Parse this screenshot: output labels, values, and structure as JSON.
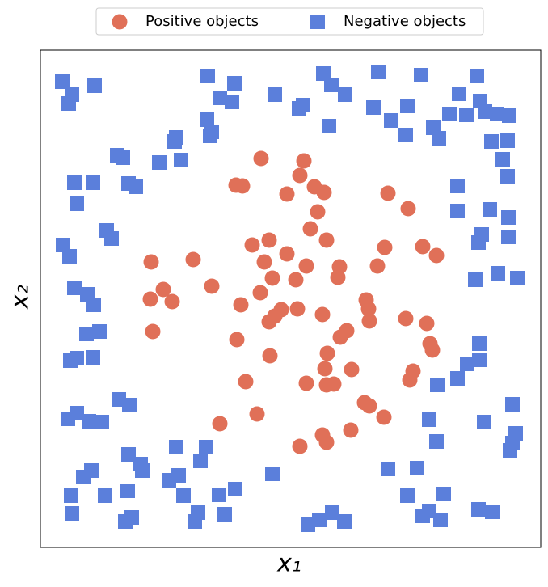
{
  "chart_data": {
    "type": "scatter",
    "xlabel": "x₁",
    "ylabel": "x₂",
    "xlim": [
      0,
      619
    ],
    "ylim": [
      0,
      615
    ],
    "legend": "upper center",
    "series": [
      {
        "name": "Positive objects",
        "color": "#e07058",
        "marker": "circle",
        "x": [
          273,
          326,
          321,
          242,
          250,
          339,
          305,
          351,
          430,
          455,
          343,
          334,
          354,
          283,
          262,
          426,
          473,
          305,
          490,
          137,
          189,
          277,
          370,
          417,
          329,
          368,
          287,
          316,
          212,
          152,
          272,
          403,
          136,
          163,
          248,
          406,
          298,
          318,
          290,
          349,
          283,
          407,
          452,
          478,
          139,
          379,
          371,
          243,
          482,
          485,
          355,
          284,
          385,
          352,
          461,
          254,
          329,
          354,
          363,
          457,
          401,
          407,
          268,
          425,
          222,
          384,
          349,
          354,
          321
        ],
        "y": [
          481,
          478,
          460,
          448,
          447,
          446,
          437,
          439,
          438,
          419,
          415,
          394,
          380,
          380,
          374,
          371,
          372,
          363,
          361,
          353,
          356,
          353,
          347,
          348,
          348,
          334,
          333,
          331,
          323,
          319,
          315,
          306,
          307,
          304,
          300,
          295,
          294,
          295,
          286,
          288,
          279,
          280,
          283,
          277,
          267,
          268,
          260,
          257,
          252,
          244,
          240,
          237,
          220,
          221,
          218,
          205,
          203,
          201,
          202,
          207,
          179,
          175,
          165,
          161,
          153,
          145,
          139,
          130,
          125
        ]
      },
      {
        "name": "Negative objects",
        "color": "#5b7fdb",
        "marker": "square",
        "x": [
          27,
          39,
          35,
          67,
          207,
          240,
          222,
          237,
          290,
          350,
          360,
          377,
          418,
          471,
          540,
          518,
          454,
          412,
          434,
          325,
          320,
          357,
          206,
          212,
          210,
          168,
          166,
          95,
          102,
          147,
          174,
          486,
          493,
          452,
          506,
          527,
          544,
          550,
          565,
          580,
          558,
          578,
          572,
          578,
          516,
          516,
          556,
          579,
          546,
          542,
          579,
          42,
          65,
          45,
          109,
          118,
          82,
          88,
          28,
          36,
          42,
          58,
          66,
          57,
          73,
          37,
          45,
          65,
          97,
          110,
          34,
          45,
          60,
          76,
          538,
          566,
          590,
          543,
          543,
          528,
          516,
          491,
          481,
          549,
          584,
          588,
          584,
          581,
          490,
          168,
          205,
          109,
          124,
          126,
          198,
          171,
          159,
          63,
          53,
          38,
          80,
          108,
          39,
          177,
          221,
          241,
          287,
          430,
          466,
          195,
          191,
          113,
          105,
          228,
          331,
          345,
          361,
          376,
          454,
          499,
          473,
          481,
          495,
          542,
          559
        ],
        "y": [
          576,
          560,
          549,
          571,
          583,
          574,
          556,
          551,
          560,
          586,
          572,
          560,
          588,
          584,
          583,
          561,
          546,
          544,
          528,
          547,
          543,
          521,
          529,
          514,
          509,
          507,
          502,
          485,
          482,
          476,
          479,
          519,
          506,
          510,
          536,
          535,
          552,
          539,
          536,
          534,
          502,
          503,
          480,
          459,
          447,
          416,
          418,
          408,
          387,
          377,
          384,
          451,
          451,
          425,
          450,
          446,
          392,
          382,
          374,
          360,
          321,
          313,
          300,
          264,
          267,
          231,
          234,
          235,
          183,
          176,
          159,
          166,
          156,
          155,
          331,
          339,
          333,
          252,
          232,
          227,
          209,
          201,
          158,
          155,
          177,
          141,
          129,
          120,
          131,
          124,
          124,
          115,
          103,
          95,
          107,
          89,
          83,
          95,
          87,
          64,
          64,
          70,
          42,
          64,
          65,
          72,
          91,
          97,
          98,
          43,
          32,
          37,
          32,
          41,
          28,
          34,
          43,
          32,
          64,
          66,
          39,
          45,
          34,
          47,
          44
        ]
      }
    ]
  }
}
